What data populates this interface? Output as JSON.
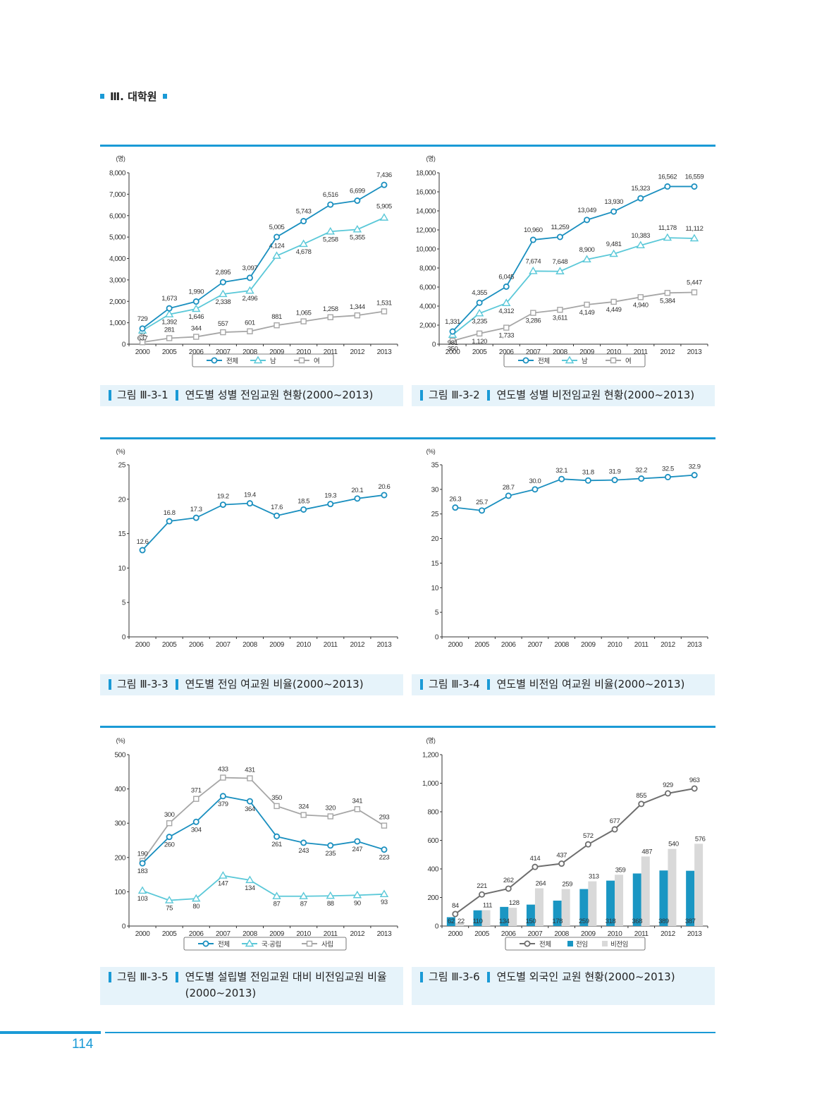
{
  "header": {
    "section": "Ⅲ. 대학원"
  },
  "colors": {
    "accent": "#1a9ad6",
    "total": "#1a8fbf",
    "male": "#5ac8d8",
    "female": "#a6a6a6",
    "caption_bg": "#e6f3fa",
    "bar_fulltime": "#1a96c3",
    "bar_parttime": "#d9d9d9",
    "total_gray": "#6e6e6e"
  },
  "captions": [
    {
      "num": "그림 Ⅲ-3-1",
      "title": "연도별 성별 전임교원 현황(2000~2013)"
    },
    {
      "num": "그림 Ⅲ-3-2",
      "title": "연도별 성별 비전임교원 현황(2000~2013)"
    },
    {
      "num": "그림 Ⅲ-3-3",
      "title": "연도별 전임 여교원 비율(2000~2013)"
    },
    {
      "num": "그림 Ⅲ-3-4",
      "title": "연도별 비전임 여교원 비율(2000~2013)"
    },
    {
      "num": "그림 Ⅲ-3-5",
      "title": "연도별 설립별 전임교원 대비 비전임교원 비율(2000~2013)"
    },
    {
      "num": "그림 Ⅲ-3-6",
      "title": "연도별 외국인 교원 현황(2000~2013)"
    }
  ],
  "footer": {
    "page_number": "114"
  },
  "chart_data": [
    {
      "type": "line",
      "title": "연도별 성별 전임교원 현황(2000~2013)",
      "ylabel": "(명)",
      "xlabel": "",
      "categories": [
        "2000",
        "2005",
        "2006",
        "2007",
        "2008",
        "2009",
        "2010",
        "2011",
        "2012",
        "2013"
      ],
      "ylim": [
        0,
        8000
      ],
      "yticks": [
        0,
        1000,
        2000,
        3000,
        4000,
        5000,
        6000,
        7000,
        8000
      ],
      "ytick_labels": [
        "0",
        "1,000",
        "2,000",
        "3,000",
        "4,000",
        "5,000",
        "6,000",
        "7,000",
        "8,000"
      ],
      "legend_position": "bottom",
      "series": [
        {
          "name": "전체",
          "marker": "circle",
          "values": [
            729,
            1673,
            1990,
            2895,
            3097,
            5005,
            5743,
            6516,
            6699,
            7436
          ],
          "labels": [
            "729",
            "1,673",
            "1,990",
            "2,895",
            "3,097",
            "5,005",
            "5,743",
            "6,516",
            "6,699",
            "7,436"
          ]
        },
        {
          "name": "남",
          "marker": "triangle",
          "values": [
            637,
            1392,
            1646,
            2338,
            2496,
            4124,
            4678,
            5258,
            5355,
            5905
          ],
          "labels": [
            "637",
            "1,392",
            "1,646",
            "2,338",
            "2,496",
            "4,124",
            "4,678",
            "5,258",
            "5,355",
            "5,905"
          ]
        },
        {
          "name": "여",
          "marker": "square",
          "values": [
            92,
            281,
            344,
            557,
            601,
            881,
            1065,
            1258,
            1344,
            1531
          ],
          "labels": [
            "92",
            "281",
            "344",
            "557",
            "601",
            "881",
            "1,065",
            "1,258",
            "1,344",
            "1,531"
          ]
        }
      ]
    },
    {
      "type": "line",
      "title": "연도별 성별 비전임교원 현황(2000~2013)",
      "ylabel": "(명)",
      "xlabel": "",
      "categories": [
        "2000",
        "2005",
        "2006",
        "2007",
        "2008",
        "2009",
        "2010",
        "2011",
        "2012",
        "2013"
      ],
      "ylim": [
        0,
        18000
      ],
      "yticks": [
        0,
        2000,
        4000,
        6000,
        8000,
        10000,
        12000,
        14000,
        16000,
        18000
      ],
      "ytick_labels": [
        "0",
        "2,000",
        "4,000",
        "6,000",
        "8,000",
        "10,000",
        "12,000",
        "14,000",
        "16,000",
        "18,000"
      ],
      "legend_position": "bottom",
      "series": [
        {
          "name": "전체",
          "marker": "circle",
          "values": [
            1331,
            4355,
            6045,
            10960,
            11259,
            13049,
            13930,
            15323,
            16562,
            16559
          ],
          "labels": [
            "1,331",
            "4,355",
            "6,045",
            "10,960",
            "11,259",
            "13,049",
            "13,930",
            "15,323",
            "16,562",
            "16,559"
          ]
        },
        {
          "name": "남",
          "marker": "triangle",
          "values": [
            981,
            3235,
            4312,
            7674,
            7648,
            8900,
            9481,
            10383,
            11178,
            11112
          ],
          "labels": [
            "981",
            "3,235",
            "4,312",
            "7,674",
            "7,648",
            "8,900",
            "9,481",
            "10,383",
            "11,178",
            "11,112"
          ]
        },
        {
          "name": "여",
          "marker": "square",
          "values": [
            350,
            1120,
            1733,
            3286,
            3611,
            4149,
            4449,
            4940,
            5384,
            5447
          ],
          "labels": [
            "350",
            "1,120",
            "1,733",
            "3,286",
            "3,611",
            "4,149",
            "4,449",
            "4,940",
            "5,384",
            "5,447"
          ]
        }
      ]
    },
    {
      "type": "line",
      "title": "연도별 전임 여교원 비율(2000~2013)",
      "ylabel": "(%)",
      "xlabel": "",
      "categories": [
        "2000",
        "2005",
        "2006",
        "2007",
        "2008",
        "2009",
        "2010",
        "2011",
        "2012",
        "2013"
      ],
      "ylim": [
        0,
        25
      ],
      "yticks": [
        0,
        5,
        10,
        15,
        20,
        25
      ],
      "ytick_labels": [
        "0",
        "5",
        "10",
        "15",
        "20",
        "25"
      ],
      "legend_position": "none",
      "series": [
        {
          "name": "전임 여교원 비율",
          "marker": "circle",
          "values": [
            12.6,
            16.8,
            17.3,
            19.2,
            19.4,
            17.6,
            18.5,
            19.3,
            20.1,
            20.6
          ],
          "labels": [
            "12.6",
            "16.8",
            "17.3",
            "19.2",
            "19.4",
            "17.6",
            "18.5",
            "19.3",
            "20.1",
            "20.6"
          ]
        }
      ]
    },
    {
      "type": "line",
      "title": "연도별 비전임 여교원 비율(2000~2013)",
      "ylabel": "(%)",
      "xlabel": "",
      "categories": [
        "2000",
        "2005",
        "2006",
        "2007",
        "2008",
        "2009",
        "2010",
        "2011",
        "2012",
        "2013"
      ],
      "ylim": [
        0,
        35
      ],
      "yticks": [
        0,
        5,
        10,
        15,
        20,
        25,
        30,
        35
      ],
      "ytick_labels": [
        "0",
        "5",
        "10",
        "15",
        "20",
        "25",
        "30",
        "35"
      ],
      "legend_position": "none",
      "series": [
        {
          "name": "비전임 여교원 비율",
          "marker": "circle",
          "values": [
            26.3,
            25.7,
            28.7,
            30.0,
            32.1,
            31.8,
            31.9,
            32.2,
            32.5,
            32.9
          ],
          "labels": [
            "26.3",
            "25.7",
            "28.7",
            "30.0",
            "32.1",
            "31.8",
            "31.9",
            "32.2",
            "32.5",
            "32.9"
          ]
        }
      ]
    },
    {
      "type": "line",
      "title": "연도별 설립별 전임교원 대비 비전임교원 비율(2000~2013)",
      "ylabel": "(%)",
      "xlabel": "",
      "categories": [
        "2000",
        "2005",
        "2006",
        "2007",
        "2008",
        "2009",
        "2010",
        "2011",
        "2012",
        "2013"
      ],
      "ylim": [
        0,
        500
      ],
      "yticks": [
        0,
        100,
        200,
        300,
        400,
        500
      ],
      "ytick_labels": [
        "0",
        "100",
        "200",
        "300",
        "400",
        "500"
      ],
      "legend_position": "bottom",
      "series": [
        {
          "name": "전체",
          "marker": "circle",
          "values": [
            183,
            260,
            304,
            379,
            364,
            261,
            243,
            235,
            247,
            223
          ],
          "labels": [
            "183",
            "260",
            "304",
            "379",
            "364",
            "261",
            "243",
            "235",
            "247",
            "223"
          ]
        },
        {
          "name": "국·공립",
          "marker": "triangle",
          "values": [
            103,
            75,
            80,
            147,
            134,
            87,
            87,
            88,
            90,
            93
          ],
          "labels": [
            "103",
            "75",
            "80",
            "147",
            "134",
            "87",
            "87",
            "88",
            "90",
            "93"
          ]
        },
        {
          "name": "사립",
          "marker": "square",
          "values": [
            190,
            300,
            371,
            433,
            431,
            350,
            324,
            320,
            341,
            293
          ],
          "labels": [
            "190",
            "300",
            "371",
            "433",
            "431",
            "350",
            "324",
            "320",
            "341",
            "293"
          ]
        }
      ]
    },
    {
      "type": "bar+line",
      "title": "연도별 외국인 교원 현황(2000~2013)",
      "ylabel": "(명)",
      "xlabel": "",
      "categories": [
        "2000",
        "2005",
        "2006",
        "2007",
        "2008",
        "2009",
        "2010",
        "2011",
        "2012",
        "2013"
      ],
      "ylim": [
        0,
        1200
      ],
      "yticks": [
        0,
        200,
        400,
        600,
        800,
        1000,
        1200
      ],
      "ytick_labels": [
        "0",
        "200",
        "400",
        "600",
        "800",
        "1,000",
        "1,200"
      ],
      "legend_position": "bottom",
      "series": [
        {
          "name": "전체",
          "kind": "line",
          "marker": "circle",
          "values": [
            84,
            221,
            262,
            414,
            437,
            572,
            677,
            855,
            929,
            963
          ],
          "labels": [
            "84",
            "221",
            "262",
            "414",
            "437",
            "572",
            "677",
            "855",
            "929",
            "963"
          ]
        },
        {
          "name": "전임",
          "kind": "bar",
          "values": [
            62,
            110,
            134,
            150,
            178,
            259,
            318,
            368,
            389,
            387
          ],
          "labels": [
            "62",
            "110",
            "134",
            "150",
            "178",
            "259",
            "318",
            "368",
            "389",
            "387"
          ]
        },
        {
          "name": "비전임",
          "kind": "bar",
          "values": [
            22,
            111,
            128,
            264,
            259,
            313,
            359,
            487,
            540,
            576
          ],
          "labels": [
            "22",
            "111",
            "128",
            "264",
            "259",
            "313",
            "359",
            "487",
            "540",
            "576"
          ]
        }
      ]
    }
  ]
}
